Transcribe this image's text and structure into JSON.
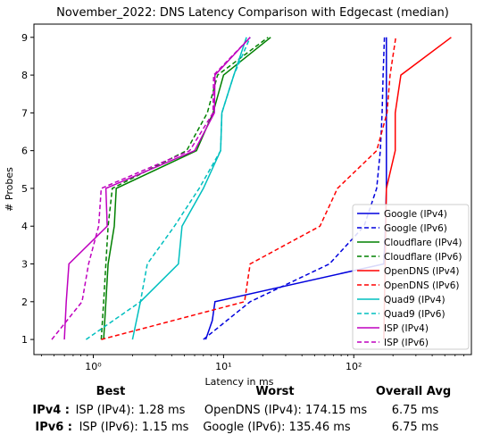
{
  "chart_data": {
    "type": "line",
    "title": "November_2022: DNS Latency Comparison with Edgecast (median)",
    "xlabel": "Latency in ms",
    "ylabel": "# Probes",
    "xscale": "log",
    "xlim": [
      0.35,
      800
    ],
    "ylim": [
      0.6,
      9.35
    ],
    "x_ticks": [
      {
        "value": 1,
        "label": "10⁰"
      },
      {
        "value": 10,
        "label": "10¹"
      },
      {
        "value": 100,
        "label": "10²"
      }
    ],
    "y_ticks": [
      1,
      2,
      3,
      4,
      5,
      6,
      7,
      8,
      9
    ],
    "legend_position": "lower-right",
    "grid": false,
    "series": [
      {
        "name": "Google (IPv4)",
        "color": "#0000dd",
        "dash": "solid",
        "points": [
          [
            7.3,
            1
          ],
          [
            8.2,
            1.5
          ],
          [
            8.6,
            2
          ],
          [
            170,
            3
          ],
          [
            175,
            4
          ],
          [
            178,
            5
          ],
          [
            178,
            6
          ],
          [
            178,
            7
          ],
          [
            178,
            8
          ],
          [
            178,
            9
          ]
        ]
      },
      {
        "name": "Google (IPv6)",
        "color": "#0000dd",
        "dash": "dashed",
        "points": [
          [
            7,
            1
          ],
          [
            16,
            2
          ],
          [
            65,
            3
          ],
          [
            120,
            4
          ],
          [
            150,
            5
          ],
          [
            160,
            6
          ],
          [
            165,
            7
          ],
          [
            168,
            8
          ],
          [
            172,
            9
          ]
        ]
      },
      {
        "name": "Cloudflare (IPv4)",
        "color": "#008000",
        "dash": "solid",
        "points": [
          [
            1.2,
            1
          ],
          [
            1.25,
            2
          ],
          [
            1.3,
            3
          ],
          [
            1.45,
            4
          ],
          [
            1.5,
            5
          ],
          [
            6.2,
            6
          ],
          [
            8.3,
            7
          ],
          [
            10,
            8
          ],
          [
            23,
            9
          ]
        ]
      },
      {
        "name": "Cloudflare (IPv6)",
        "color": "#008000",
        "dash": "dashed",
        "points": [
          [
            1.15,
            1
          ],
          [
            1.2,
            2
          ],
          [
            1.25,
            3
          ],
          [
            1.3,
            4
          ],
          [
            1.4,
            5
          ],
          [
            5.2,
            6
          ],
          [
            7.5,
            7
          ],
          [
            9,
            8
          ],
          [
            22,
            9
          ]
        ]
      },
      {
        "name": "OpenDNS (IPv4)",
        "color": "#ff0000",
        "dash": "solid",
        "points": [
          [
            170,
            1
          ],
          [
            172,
            2
          ],
          [
            174,
            3
          ],
          [
            176,
            4
          ],
          [
            178,
            5
          ],
          [
            208,
            6
          ],
          [
            208,
            7
          ],
          [
            230,
            8
          ],
          [
            560,
            9
          ]
        ]
      },
      {
        "name": "OpenDNS (IPv6)",
        "color": "#ff0000",
        "dash": "dashed",
        "points": [
          [
            1.15,
            1
          ],
          [
            14.5,
            2
          ],
          [
            16,
            3
          ],
          [
            55,
            4
          ],
          [
            75,
            5
          ],
          [
            150,
            6
          ],
          [
            180,
            7
          ],
          [
            190,
            8
          ],
          [
            210,
            9
          ]
        ]
      },
      {
        "name": "Quad9 (IPv4)",
        "color": "#00bfbf",
        "dash": "solid",
        "points": [
          [
            2,
            1
          ],
          [
            2.3,
            2
          ],
          [
            4.5,
            3
          ],
          [
            4.8,
            4
          ],
          [
            7,
            5
          ],
          [
            9.5,
            6
          ],
          [
            9.7,
            7
          ],
          [
            12,
            8
          ],
          [
            15,
            9
          ]
        ]
      },
      {
        "name": "Quad9 (IPv6)",
        "color": "#00bfbf",
        "dash": "dashed",
        "points": [
          [
            0.88,
            1
          ],
          [
            2.3,
            2
          ],
          [
            2.6,
            3
          ],
          [
            4.2,
            4
          ],
          [
            6.5,
            5
          ],
          [
            9.5,
            6
          ],
          [
            9.7,
            7
          ],
          [
            12,
            8
          ],
          [
            16,
            9
          ]
        ]
      },
      {
        "name": "ISP (IPv4)",
        "color": "#bf00bf",
        "dash": "solid",
        "points": [
          [
            0.6,
            1
          ],
          [
            0.62,
            2
          ],
          [
            0.65,
            3
          ],
          [
            1.28,
            4
          ],
          [
            1.25,
            5
          ],
          [
            6,
            6
          ],
          [
            8.5,
            7
          ],
          [
            8.6,
            8
          ],
          [
            16,
            9
          ]
        ]
      },
      {
        "name": "ISP (IPv6)",
        "color": "#bf00bf",
        "dash": "dashed",
        "points": [
          [
            0.48,
            1
          ],
          [
            0.82,
            2
          ],
          [
            0.92,
            3
          ],
          [
            1.1,
            4
          ],
          [
            1.15,
            5
          ],
          [
            5.5,
            6
          ],
          [
            8.3,
            7
          ],
          [
            8.4,
            8
          ],
          [
            16,
            9
          ]
        ]
      }
    ]
  },
  "summary": {
    "headers": {
      "best": "Best",
      "worst": "Worst",
      "avg": "Overall Avg"
    },
    "rows": [
      {
        "label": "IPv4 :",
        "best": "ISP (IPv4): 1.28 ms",
        "worst": "OpenDNS (IPv4): 174.15 ms",
        "avg": "6.75 ms"
      },
      {
        "label": "IPv6 :",
        "best": "ISP (IPv6): 1.15 ms",
        "worst": "Google (IPv6): 135.46 ms",
        "avg": "6.75 ms"
      }
    ]
  }
}
